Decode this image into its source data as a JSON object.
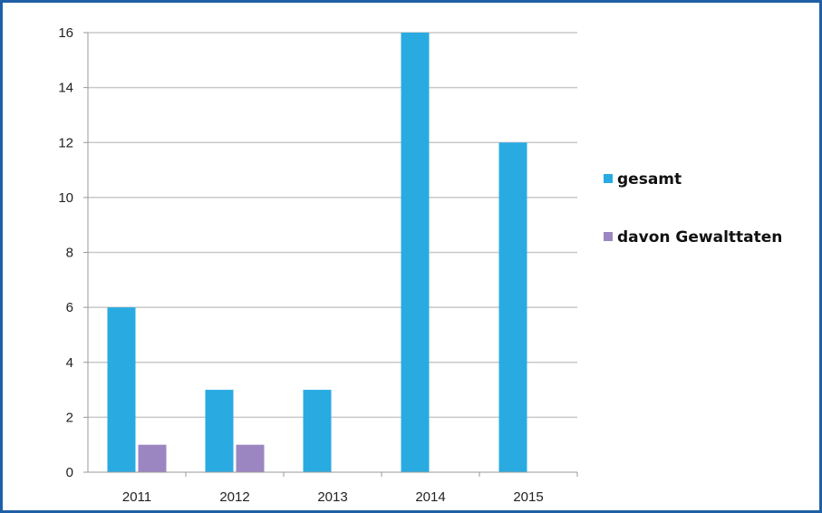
{
  "chart_data": {
    "type": "bar",
    "categories": [
      "2011",
      "2012",
      "2013",
      "2014",
      "2015"
    ],
    "series": [
      {
        "name": "gesamt",
        "values": [
          6,
          3,
          3,
          16,
          12
        ],
        "color": "#29abe2"
      },
      {
        "name": "davon Gewalttaten",
        "values": [
          1,
          1,
          0,
          0,
          0
        ],
        "color": "#9b86c1"
      }
    ],
    "ylim": [
      0,
      16
    ],
    "yticks": [
      "0",
      "2",
      "4",
      "6",
      "8",
      "10",
      "12",
      "14",
      "16"
    ],
    "grid": true,
    "legend_position": "right",
    "frame_color": "#1f5fa6"
  }
}
